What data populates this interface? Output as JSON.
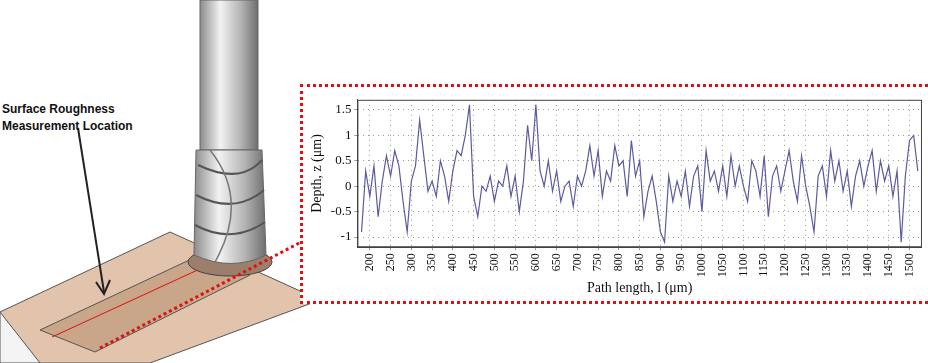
{
  "chart_data": {
    "type": "line",
    "x_label": "Path length, l (μm)",
    "y_label": "Depth, z (μm)",
    "color": "#5b5b9e",
    "grid": true,
    "xlim": [
      170,
      1530
    ],
    "xticks": [
      200,
      250,
      300,
      350,
      400,
      450,
      500,
      550,
      600,
      650,
      700,
      750,
      800,
      850,
      900,
      950,
      1000,
      1050,
      1100,
      1150,
      1200,
      1250,
      1300,
      1350,
      1400,
      1450,
      1500
    ],
    "ylim": [
      -1.2,
      1.7
    ],
    "yticks": [
      -1,
      -0.5,
      0,
      0.5,
      1,
      1.5
    ],
    "x": [
      180,
      190,
      200,
      210,
      220,
      230,
      240,
      250,
      260,
      270,
      280,
      290,
      300,
      310,
      320,
      330,
      340,
      350,
      360,
      370,
      380,
      390,
      400,
      410,
      420,
      430,
      440,
      450,
      460,
      470,
      480,
      490,
      500,
      510,
      520,
      530,
      540,
      550,
      560,
      570,
      580,
      590,
      600,
      610,
      620,
      630,
      640,
      650,
      660,
      670,
      680,
      690,
      700,
      710,
      720,
      730,
      740,
      750,
      760,
      770,
      780,
      790,
      800,
      810,
      820,
      830,
      840,
      850,
      860,
      870,
      880,
      890,
      900,
      910,
      920,
      930,
      940,
      950,
      960,
      970,
      980,
      990,
      1000,
      1010,
      1020,
      1030,
      1040,
      1050,
      1060,
      1070,
      1080,
      1090,
      1100,
      1110,
      1120,
      1130,
      1140,
      1150,
      1160,
      1170,
      1180,
      1190,
      1200,
      1210,
      1220,
      1230,
      1240,
      1250,
      1260,
      1270,
      1280,
      1290,
      1300,
      1310,
      1320,
      1330,
      1340,
      1350,
      1360,
      1370,
      1380,
      1390,
      1400,
      1410,
      1420,
      1430,
      1440,
      1450,
      1460,
      1470,
      1480,
      1490,
      1500,
      1510,
      1520
    ],
    "values": [
      -0.9,
      0.3,
      -0.2,
      0.4,
      -0.6,
      0.1,
      0.6,
      0.2,
      0.7,
      0.4,
      -0.3,
      -0.9,
      0.1,
      0.4,
      1.3,
      0.6,
      -0.1,
      0.1,
      -0.2,
      0.5,
      0.2,
      -0.3,
      0.3,
      0.7,
      0.6,
      1.0,
      1.6,
      -0.2,
      -0.6,
      0.0,
      -0.1,
      0.2,
      -0.3,
      0.1,
      0.0,
      0.4,
      -0.2,
      0.2,
      -0.5,
      0.1,
      1.2,
      0.5,
      1.6,
      0.3,
      0.0,
      0.5,
      -0.1,
      0.3,
      -0.3,
      0.0,
      0.1,
      -0.4,
      0.2,
      0.0,
      0.3,
      0.8,
      0.2,
      0.7,
      -0.2,
      0.3,
      0.1,
      0.8,
      0.4,
      0.5,
      -0.2,
      0.9,
      0.2,
      0.5,
      -0.6,
      -0.1,
      0.2,
      -0.3,
      -0.9,
      -1.1,
      0.2,
      -0.3,
      0.1,
      -0.2,
      0.3,
      -0.4,
      0.2,
      0.4,
      -0.5,
      0.7,
      0.1,
      0.3,
      -0.1,
      0.4,
      -0.2,
      0.6,
      0.0,
      0.4,
      0.0,
      -0.3,
      0.5,
      0.3,
      -0.2,
      0.6,
      -0.6,
      0.2,
      0.4,
      -0.1,
      0.3,
      0.7,
      0.1,
      -0.3,
      0.6,
      0.0,
      -0.4,
      -0.9,
      0.2,
      0.4,
      -0.2,
      0.7,
      0.1,
      0.5,
      -0.1,
      0.3,
      -0.4,
      0.2,
      0.5,
      0.0,
      0.4,
      0.7,
      -0.1,
      0.5,
      0.1,
      0.4,
      -0.2,
      0.3,
      -1.1,
      0.2,
      0.9,
      1.0,
      0.3
    ]
  },
  "illustration": {
    "label": [
      "Surface Roughness",
      "Measurement Location"
    ]
  }
}
